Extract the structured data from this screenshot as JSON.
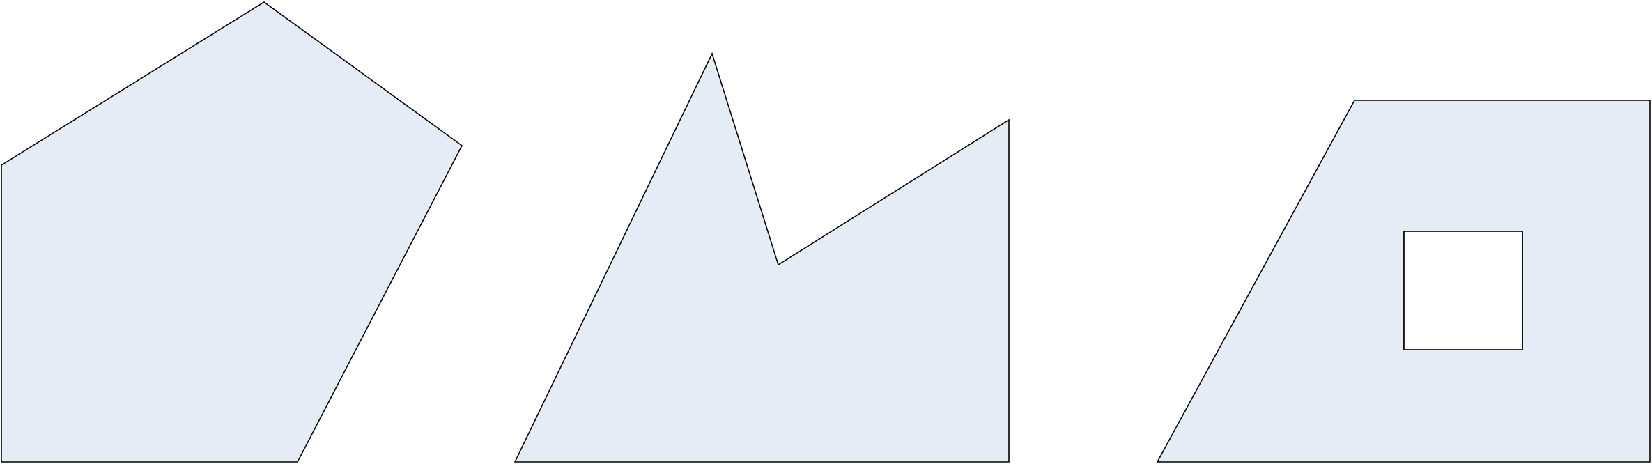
{
  "colors": {
    "background": "#ffffff",
    "shape_fill": "#e6ecf6",
    "hole_fill": "#ffffff",
    "stroke": "#000000"
  },
  "shapes": [
    {
      "kind": "convex-pentagon"
    },
    {
      "kind": "concave-polygon"
    },
    {
      "kind": "quadrilateral-with-square-hole"
    }
  ]
}
